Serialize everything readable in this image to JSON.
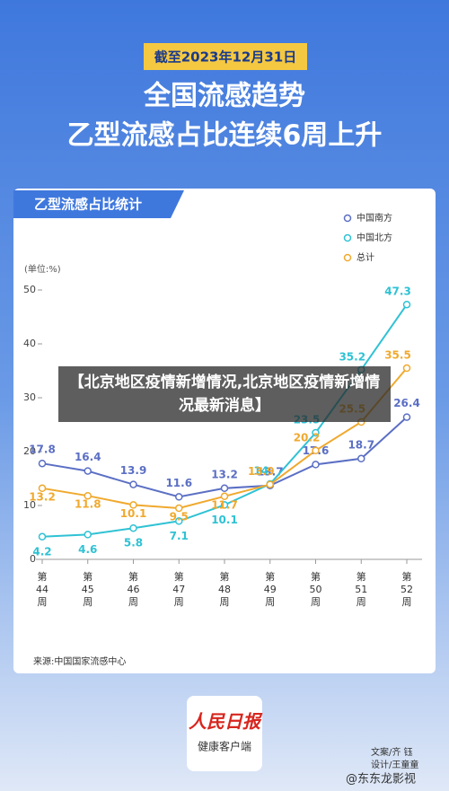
{
  "header": {
    "date": "截至2023年12月31日",
    "title_line1": "全国流感趋势",
    "title_line2": "乙型流感占比连续6周上升"
  },
  "chart_data": {
    "type": "line",
    "title": "乙型流感占比统计",
    "y_unit": "(单位:%)",
    "categories": [
      "第44周",
      "第45周",
      "第46周",
      "第47周",
      "第48周",
      "第49周",
      "第50周",
      "第51周",
      "第52周"
    ],
    "series": [
      {
        "name": "中国南方",
        "color": "#5b6fc4",
        "values": [
          17.8,
          16.4,
          13.9,
          11.6,
          13.2,
          13.7,
          17.6,
          18.7,
          26.4
        ]
      },
      {
        "name": "中国北方",
        "color": "#2fc2d4",
        "values": [
          4.2,
          4.6,
          5.8,
          7.1,
          10.1,
          14,
          23.5,
          35.2,
          47.3
        ]
      },
      {
        "name": "总计",
        "color": "#f0a92e",
        "values": [
          13.2,
          11.8,
          10.1,
          9.5,
          11.7,
          13.9,
          20.2,
          25.5,
          35.5
        ]
      }
    ],
    "ylim": [
      0,
      50
    ],
    "yticks": [
      0,
      10,
      20,
      30,
      40,
      50
    ],
    "grid": false,
    "legend": "top-right"
  },
  "overlay": "【北京地区疫情新增情况,北京地区疫情新增情况最新消息】",
  "source": "来源:中国国家流感中心",
  "logo": {
    "name": "人民日报",
    "sub": "健康客户端"
  },
  "credits": {
    "writer": "文案/齐 钰",
    "designer": "设计/王童童"
  },
  "watermark": "@东东龙影视"
}
